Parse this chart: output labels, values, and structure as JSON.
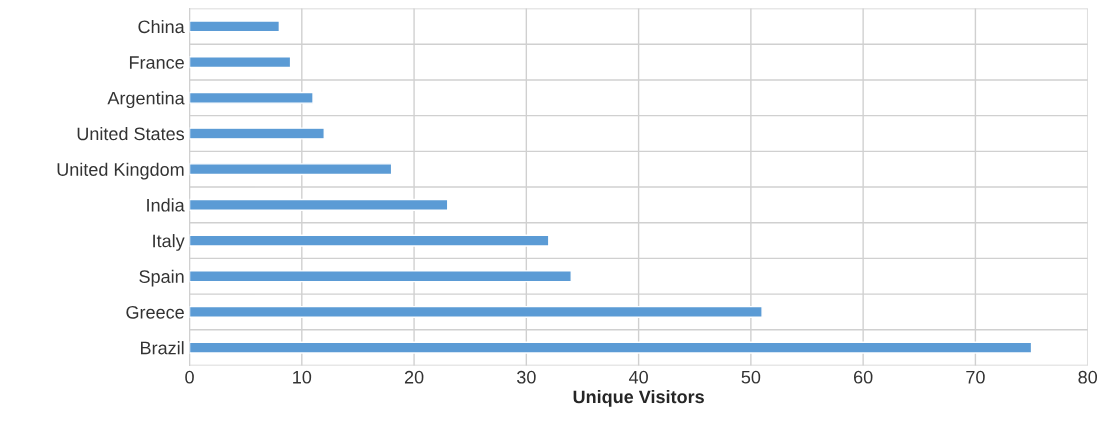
{
  "chart_data": {
    "type": "bar",
    "orientation": "horizontal",
    "xlabel": "Unique Visitors",
    "categories": [
      "China",
      "France",
      "Argentina",
      "United States",
      "United Kingdom",
      "India",
      "Italy",
      "Spain",
      "Greece",
      "Brazil"
    ],
    "values": [
      8,
      9,
      11,
      12,
      18,
      23,
      32,
      34,
      51,
      75
    ],
    "color": "#5b9bd5",
    "xlim": [
      0,
      80
    ],
    "xticks": [
      0,
      10,
      20,
      30,
      40,
      50,
      60,
      70,
      80
    ],
    "grid": true
  }
}
